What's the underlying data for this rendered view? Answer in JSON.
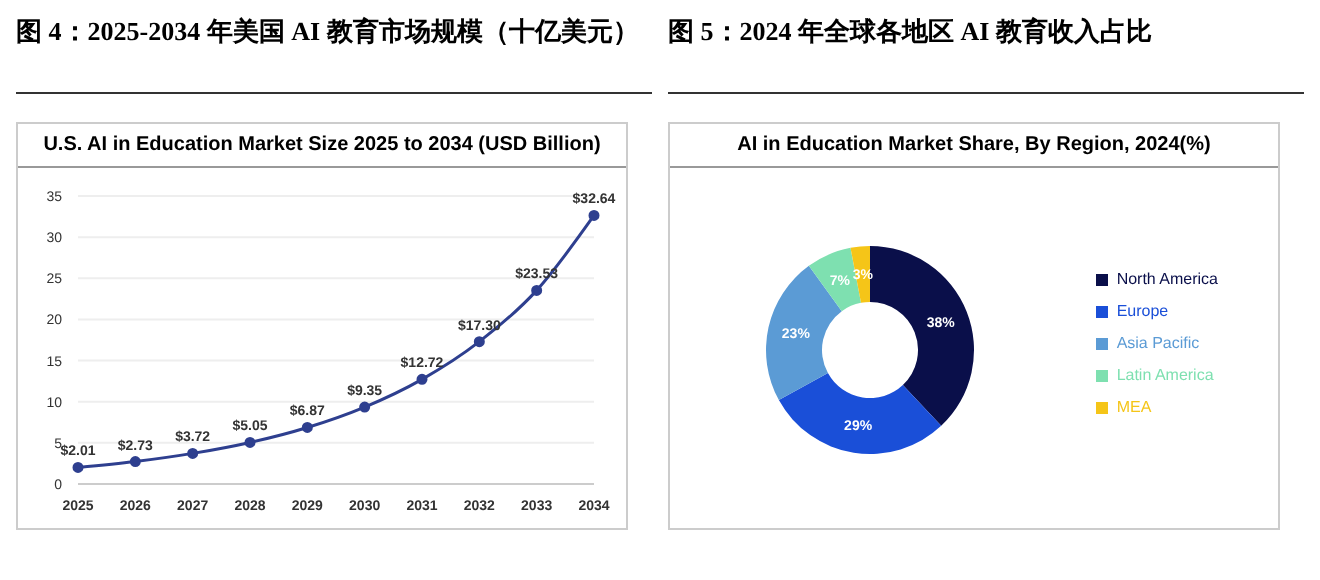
{
  "chart_data": [
    {
      "type": "line",
      "title": "图 4：2025-2034 年美国 AI 教育市场规模（十亿美元）",
      "subtitle": "U.S. AI in Education Market Size 2025 to 2034 (USD Billion)",
      "categories": [
        "2025",
        "2026",
        "2027",
        "2028",
        "2029",
        "2030",
        "2031",
        "2032",
        "2033",
        "2034"
      ],
      "series": [
        {
          "color": "#2e3f8f",
          "values": [
            2.01,
            2.73,
            3.72,
            5.05,
            6.87,
            9.35,
            12.72,
            17.3,
            23.53,
            32.64
          ],
          "value_labels": [
            "$2.01",
            "$2.73",
            "$3.72",
            "$5.05",
            "$6.87",
            "$9.35",
            "$12.72",
            "$17.30",
            "$23.53",
            "$32.64"
          ]
        }
      ],
      "ylim": [
        0,
        35
      ],
      "yticks": [
        0,
        5,
        10,
        15,
        20,
        25,
        30,
        35
      ],
      "grid": "y",
      "marker": "circle"
    },
    {
      "type": "donut",
      "title": "图 5：2024 年全球各地区 AI 教育收入占比",
      "subtitle": "AI in Education Market Share, By Region, 2024(%)",
      "categories": [
        "North America",
        "Europe",
        "Asia Pacific",
        "Latin America",
        "MEA"
      ],
      "values": [
        38,
        29,
        23,
        7,
        3
      ],
      "colors": [
        "#0a0f4a",
        "#1a4fd8",
        "#5b9bd5",
        "#7ee0b0",
        "#f5c518"
      ],
      "value_labels": [
        "38%",
        "29%",
        "23%",
        "7%",
        "3%"
      ],
      "legend": "right"
    }
  ]
}
